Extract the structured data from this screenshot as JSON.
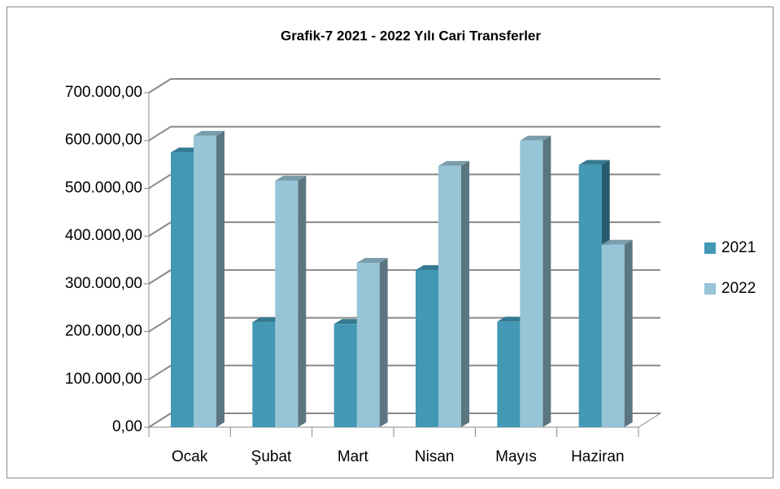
{
  "chart_data": {
    "type": "bar3d",
    "title": "Grafik-7 2021 - 2022 Yılı Cari Transferler",
    "categories": [
      "Ocak",
      "Şubat",
      "Mart",
      "Nisan",
      "Mayıs",
      "Haziran"
    ],
    "series": [
      {
        "name": "2021",
        "color": "#4298b5",
        "values": [
          575000,
          220000,
          216000,
          329000,
          221000,
          549000
        ]
      },
      {
        "name": "2022",
        "color": "#97c4d6",
        "values": [
          610000,
          516000,
          344000,
          547000,
          600000,
          382000
        ]
      }
    ],
    "ylim": [
      0,
      700000
    ],
    "yticks": [
      {
        "value": 0,
        "label": "0,00"
      },
      {
        "value": 100000,
        "label": "100.000,00"
      },
      {
        "value": 200000,
        "label": "200.000,00"
      },
      {
        "value": 300000,
        "label": "300.000,00"
      },
      {
        "value": 400000,
        "label": "400.000,00"
      },
      {
        "value": 500000,
        "label": "500.000,00"
      },
      {
        "value": 600000,
        "label": "600.000,00"
      },
      {
        "value": 700000,
        "label": "700.000,00"
      }
    ],
    "grid": true,
    "legend": "right"
  }
}
